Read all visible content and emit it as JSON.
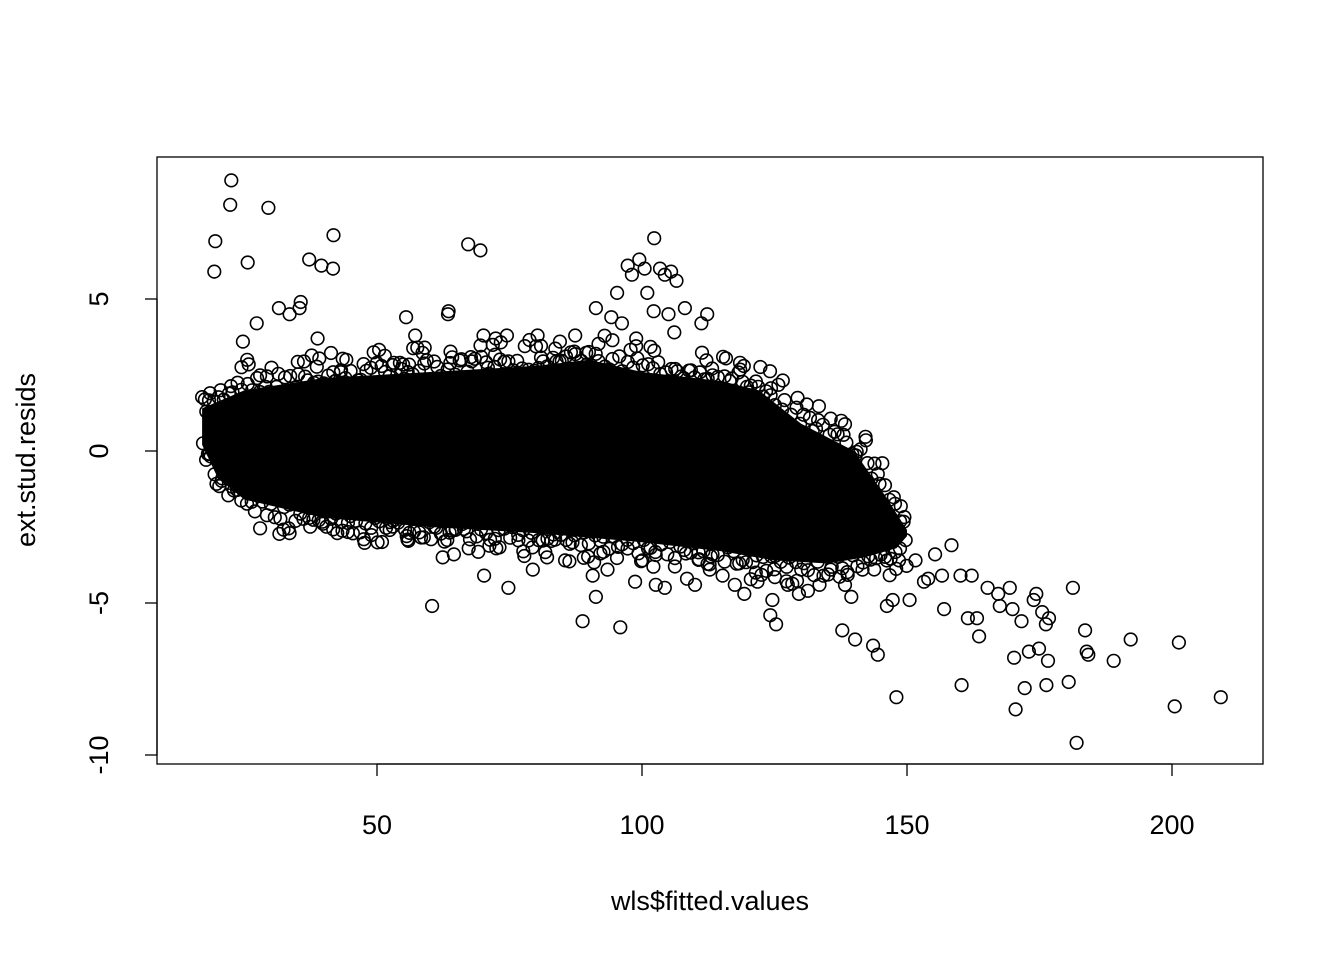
{
  "chart_data": {
    "type": "scatter",
    "title": "",
    "xlabel": "wls$fitted.values",
    "ylabel": "ext.stud.resids",
    "xlim": [
      10,
      220
    ],
    "ylim": [
      -10.3,
      9.6
    ],
    "x_ticks": [
      50,
      100,
      150,
      200
    ],
    "y_ticks": [
      -10,
      -5,
      0,
      5
    ],
    "x_tick_labels": [
      "50",
      "100",
      "150",
      "200"
    ],
    "y_tick_labels": [
      "-10",
      "-5",
      "0",
      "5"
    ],
    "grid": false,
    "marker": "open-circle",
    "colors": {
      "points": "#000000",
      "background": "#ffffff"
    },
    "series": [
      {
        "points": [
          [
            22.5,
            8.9
          ],
          [
            22.3,
            8.1
          ],
          [
            29.5,
            8.0
          ],
          [
            19.5,
            6.9
          ],
          [
            19.3,
            5.9
          ],
          [
            25.6,
            6.2
          ],
          [
            27.3,
            4.2
          ],
          [
            24.7,
            3.6
          ],
          [
            25.5,
            3.0
          ],
          [
            31.5,
            4.7
          ],
          [
            33.5,
            4.5
          ],
          [
            35.6,
            4.9
          ],
          [
            35.4,
            4.7
          ],
          [
            37.2,
            6.3
          ],
          [
            39.5,
            6.1
          ],
          [
            41.8,
            7.1
          ],
          [
            41.7,
            6.0
          ],
          [
            38.8,
            3.7
          ],
          [
            42.1,
            2.3
          ],
          [
            44.2,
            3.0
          ],
          [
            55.5,
            4.4
          ],
          [
            57.2,
            3.8
          ],
          [
            59.0,
            3.4
          ],
          [
            63.5,
            4.6
          ],
          [
            63.4,
            4.5
          ],
          [
            67.2,
            6.8
          ],
          [
            69.5,
            6.6
          ],
          [
            70.1,
            3.8
          ],
          [
            72.4,
            3.7
          ],
          [
            74.5,
            3.8
          ],
          [
            80.3,
            3.8
          ],
          [
            84.5,
            3.6
          ],
          [
            87.4,
            3.8
          ],
          [
            91.3,
            4.7
          ],
          [
            94.2,
            4.4
          ],
          [
            95.3,
            5.2
          ],
          [
            96.2,
            4.2
          ],
          [
            97.3,
            6.1
          ],
          [
            98.1,
            5.8
          ],
          [
            99.5,
            6.3
          ],
          [
            100.5,
            6.0
          ],
          [
            102.3,
            7.0
          ],
          [
            101.0,
            5.2
          ],
          [
            102.2,
            4.6
          ],
          [
            103.4,
            6.0
          ],
          [
            104.3,
            5.8
          ],
          [
            105.5,
            5.9
          ],
          [
            106.5,
            5.6
          ],
          [
            105.0,
            4.5
          ],
          [
            108.1,
            4.7
          ],
          [
            111.2,
            4.2
          ],
          [
            112.3,
            4.5
          ],
          [
            98.9,
            3.7
          ],
          [
            102.3,
            3.3
          ],
          [
            106.1,
            3.9
          ],
          [
            115.3,
            3.1
          ],
          [
            118.5,
            2.9
          ],
          [
            17.8,
            1.3
          ],
          [
            18.5,
            1.9
          ],
          [
            20.5,
            2.0
          ],
          [
            18.1,
            -0.1
          ],
          [
            20.8,
            -0.9
          ],
          [
            23.0,
            -1.3
          ],
          [
            33.5,
            -2.7
          ],
          [
            37.2,
            -2.2
          ],
          [
            42.5,
            -2.7
          ],
          [
            47.5,
            -2.9
          ],
          [
            52.4,
            -2.6
          ],
          [
            55.6,
            -2.8
          ],
          [
            60.2,
            -2.9
          ],
          [
            60.4,
            -5.1
          ],
          [
            62.4,
            -3.5
          ],
          [
            64.5,
            -3.4
          ],
          [
            67.3,
            -3.2
          ],
          [
            70.2,
            -4.1
          ],
          [
            72.5,
            -3.2
          ],
          [
            74.8,
            -4.5
          ],
          [
            77.6,
            -3.3
          ],
          [
            79.4,
            -3.9
          ],
          [
            82.1,
            -3.5
          ],
          [
            85.5,
            -3.6
          ],
          [
            88.8,
            -5.6
          ],
          [
            90.7,
            -4.1
          ],
          [
            91.3,
            -4.8
          ],
          [
            93.5,
            -3.9
          ],
          [
            95.9,
            -5.8
          ],
          [
            98.7,
            -4.3
          ],
          [
            100.1,
            -3.6
          ],
          [
            102.6,
            -4.4
          ],
          [
            104.3,
            -4.5
          ],
          [
            106.2,
            -3.8
          ],
          [
            108.5,
            -4.2
          ],
          [
            110.0,
            -4.4
          ],
          [
            112.8,
            -3.9
          ],
          [
            115.2,
            -4.1
          ],
          [
            117.5,
            -4.4
          ],
          [
            119.3,
            -4.7
          ],
          [
            121.8,
            -4.3
          ],
          [
            124.2,
            -5.4
          ],
          [
            125.3,
            -5.7
          ],
          [
            124.6,
            -4.9
          ],
          [
            127.5,
            -4.4
          ],
          [
            129.6,
            -4.7
          ],
          [
            131.3,
            -4.6
          ],
          [
            133.5,
            -4.4
          ],
          [
            135.6,
            -3.9
          ],
          [
            137.8,
            -5.9
          ],
          [
            139.5,
            -4.8
          ],
          [
            140.2,
            -6.2
          ],
          [
            141.6,
            -3.9
          ],
          [
            143.6,
            -6.4
          ],
          [
            144.5,
            -6.7
          ],
          [
            146.2,
            -5.1
          ],
          [
            147.3,
            -4.9
          ],
          [
            148.0,
            -8.1
          ],
          [
            148.5,
            -3.6
          ],
          [
            150.5,
            -4.9
          ],
          [
            151.6,
            -3.6
          ],
          [
            153.2,
            -4.3
          ],
          [
            154.0,
            -4.2
          ],
          [
            155.3,
            -3.4
          ],
          [
            156.6,
            -4.1
          ],
          [
            157.0,
            -5.2
          ],
          [
            158.4,
            -3.1
          ],
          [
            160.1,
            -4.1
          ],
          [
            160.3,
            -7.7
          ],
          [
            161.5,
            -5.5
          ],
          [
            162.2,
            -4.1
          ],
          [
            163.2,
            -5.5
          ],
          [
            163.6,
            -6.1
          ],
          [
            165.2,
            -4.5
          ],
          [
            167.2,
            -4.7
          ],
          [
            167.5,
            -5.1
          ],
          [
            169.4,
            -4.5
          ],
          [
            169.9,
            -5.2
          ],
          [
            170.2,
            -6.8
          ],
          [
            170.5,
            -8.5
          ],
          [
            171.6,
            -5.6
          ],
          [
            172.2,
            -7.8
          ],
          [
            173.0,
            -6.6
          ],
          [
            173.9,
            -4.9
          ],
          [
            174.4,
            -4.7
          ],
          [
            174.9,
            -6.5
          ],
          [
            175.5,
            -5.3
          ],
          [
            176.2,
            -5.7
          ],
          [
            176.3,
            -7.7
          ],
          [
            176.6,
            -6.9
          ],
          [
            176.8,
            -5.5
          ],
          [
            180.5,
            -7.6
          ],
          [
            181.3,
            -4.5
          ],
          [
            182.0,
            -9.6
          ],
          [
            183.6,
            -5.9
          ],
          [
            183.9,
            -6.6
          ],
          [
            184.2,
            -6.7
          ],
          [
            189.0,
            -6.9
          ],
          [
            192.2,
            -6.2
          ],
          [
            200.5,
            -8.4
          ],
          [
            201.3,
            -6.3
          ],
          [
            209.2,
            -8.1
          ]
        ]
      }
    ],
    "dense_band": {
      "description_of_mass": "heavily overplotted cloud",
      "x_range": [
        17,
        150
      ],
      "upper_edge": [
        [
          17,
          1.4
        ],
        [
          25,
          2.0
        ],
        [
          40,
          2.4
        ],
        [
          60,
          2.6
        ],
        [
          80,
          2.8
        ],
        [
          90,
          3.0
        ],
        [
          100,
          2.6
        ],
        [
          115,
          2.3
        ],
        [
          122,
          2.0
        ],
        [
          130,
          0.9
        ],
        [
          140,
          0.0
        ],
        [
          146,
          -1.5
        ],
        [
          150,
          -2.6
        ]
      ],
      "lower_edge": [
        [
          17,
          0.2
        ],
        [
          20,
          -0.9
        ],
        [
          25,
          -1.6
        ],
        [
          40,
          -2.2
        ],
        [
          60,
          -2.5
        ],
        [
          80,
          -2.7
        ],
        [
          100,
          -3.0
        ],
        [
          115,
          -3.3
        ],
        [
          125,
          -3.6
        ],
        [
          135,
          -3.7
        ],
        [
          142,
          -3.5
        ],
        [
          148,
          -3.2
        ],
        [
          150,
          -2.8
        ]
      ]
    }
  }
}
